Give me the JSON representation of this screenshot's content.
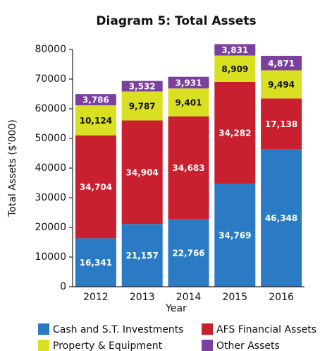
{
  "chart_data": {
    "type": "stacked_bar",
    "title": "Diagram 5: Total Assets",
    "x_label": "Year",
    "y_label": "Total Assets ($'000)",
    "categories": [
      "2012",
      "2013",
      "2014",
      "2015",
      "2016"
    ],
    "series": [
      {
        "name": "Cash and S.T. Investments",
        "color": "#2a7bc4",
        "values": [
          16341,
          21157,
          22766,
          34769,
          46348
        ],
        "value_labels": [
          "16,341",
          "21,157",
          "22,766",
          "34,769",
          "46,348"
        ]
      },
      {
        "name": "AFS Financial Assets",
        "color": "#c8202f",
        "values": [
          34704,
          34904,
          34683,
          34282,
          17138
        ],
        "value_labels": [
          "34,704",
          "34,904",
          "34,683",
          "34,282",
          "17,138"
        ]
      },
      {
        "name": "Property & Equipment",
        "color": "#d9e021",
        "values": [
          10124,
          9787,
          9401,
          8909,
          9494
        ],
        "value_labels": [
          "10,124",
          "9,787",
          "9,401",
          "8,909",
          "9,494"
        ]
      },
      {
        "name": "Other Assets",
        "color": "#7b3f9e",
        "values": [
          3786,
          3532,
          3931,
          3831,
          4871
        ],
        "value_labels": [
          "3,786",
          "3,532",
          "3,931",
          "3,831",
          "4,871"
        ]
      }
    ],
    "ylim": [
      0,
      80000
    ],
    "yticks": [
      0,
      10000,
      20000,
      30000,
      40000,
      50000,
      60000,
      70000,
      80000
    ],
    "grid": false
  }
}
